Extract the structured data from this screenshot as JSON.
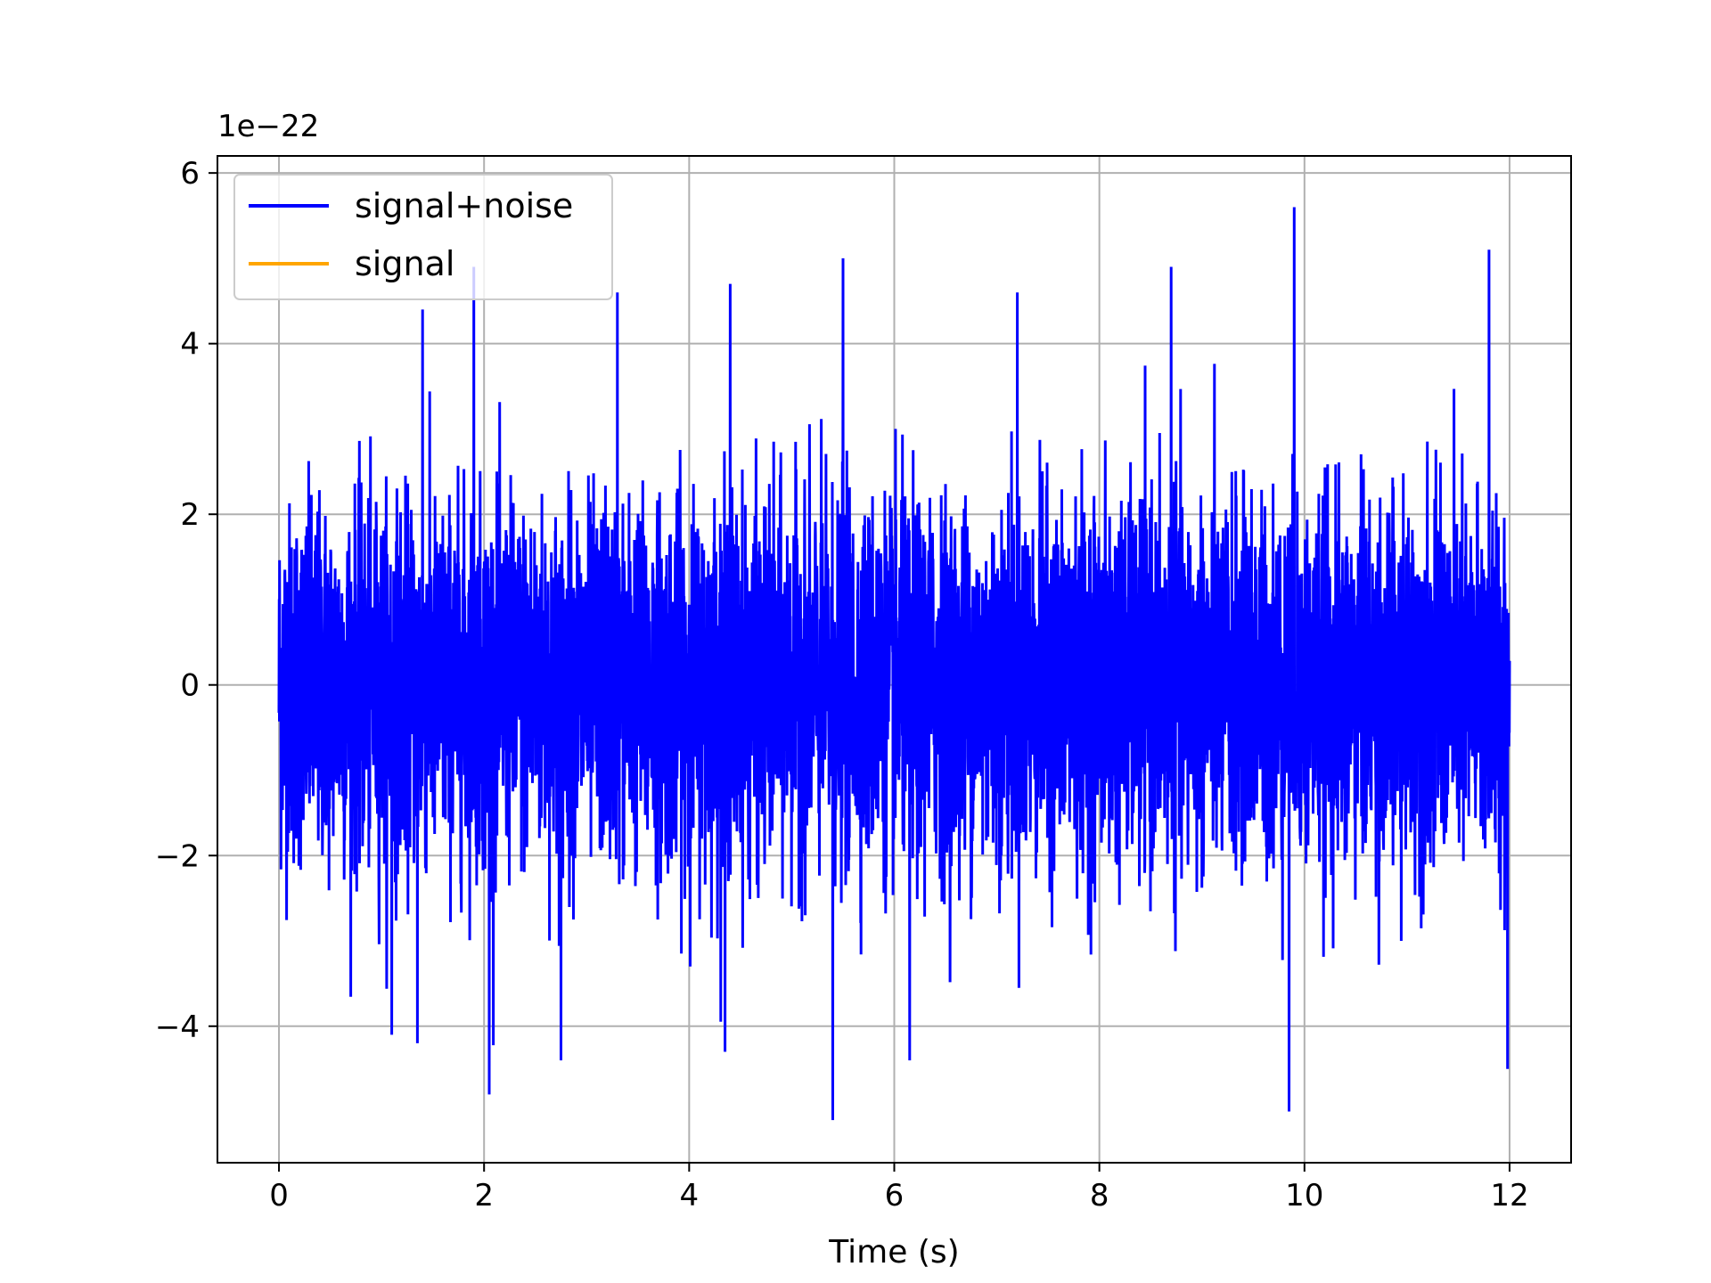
{
  "chart_data": {
    "type": "line",
    "xlabel": "Time (s)",
    "ylabel": "",
    "y_offset_text": "1e−22",
    "xlim": [
      -0.6,
      12.6
    ],
    "ylim": [
      -5.6,
      6.2
    ],
    "x_ticks": [
      0,
      2,
      4,
      6,
      8,
      10,
      12
    ],
    "x_tick_labels": [
      "0",
      "2",
      "4",
      "6",
      "8",
      "10",
      "12"
    ],
    "y_ticks": [
      -4,
      -2,
      0,
      2,
      4,
      6
    ],
    "y_tick_labels": [
      "−4",
      "−2",
      "0",
      "2",
      "4",
      "6"
    ],
    "grid": true,
    "legend_position": "upper-left",
    "colors": {
      "signal_noise": "#0000ff",
      "signal": "#ffa500"
    },
    "series": [
      {
        "name": "signal+noise",
        "color": "#0000ff",
        "x_range": [
          0,
          12
        ],
        "std": 1.0,
        "notable_peaks": [
          {
            "x": 1.9,
            "y": 4.9
          },
          {
            "x": 3.3,
            "y": 4.6
          },
          {
            "x": 4.4,
            "y": 4.7
          },
          {
            "x": 5.5,
            "y": 5.0
          },
          {
            "x": 7.2,
            "y": 4.6
          },
          {
            "x": 8.7,
            "y": 4.9
          },
          {
            "x": 9.9,
            "y": 5.6
          },
          {
            "x": 11.8,
            "y": 5.1
          },
          {
            "x": 1.4,
            "y": 4.4
          }
        ],
        "notable_troughs": [
          {
            "x": 2.05,
            "y": -4.8
          },
          {
            "x": 5.4,
            "y": -5.1
          },
          {
            "x": 9.85,
            "y": -5.0
          },
          {
            "x": 11.98,
            "y": -4.5
          },
          {
            "x": 6.15,
            "y": -4.4
          },
          {
            "x": 2.75,
            "y": -4.4
          },
          {
            "x": 1.35,
            "y": -4.2
          },
          {
            "x": 1.1,
            "y": -4.1
          },
          {
            "x": 4.35,
            "y": -4.3
          }
        ]
      },
      {
        "name": "signal",
        "color": "#ffa500",
        "values": []
      }
    ]
  }
}
